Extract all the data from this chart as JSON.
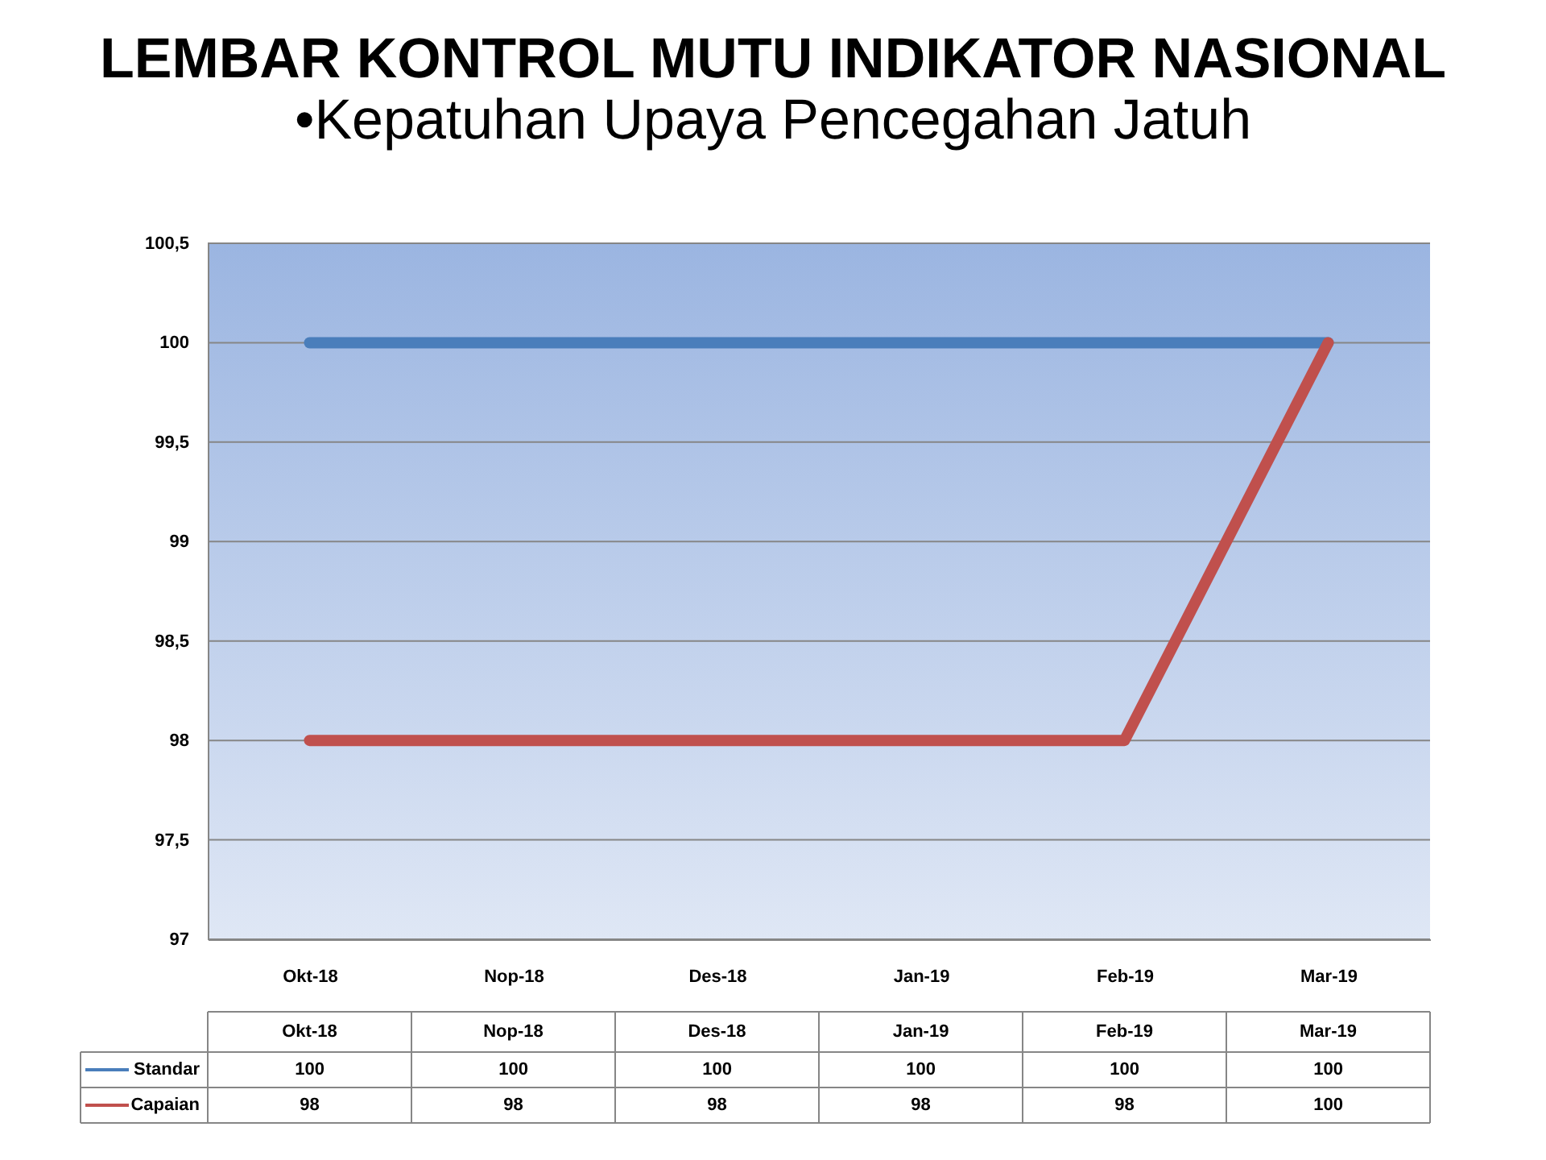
{
  "chart_data": {
    "type": "line",
    "title": "LEMBAR KONTROL MUTU INDIKATOR NASIONAL",
    "subtitle": "•Kepatuhan Upaya Pencegahan Jatuh",
    "categories": [
      "Okt-18",
      "Nop-18",
      "Des-18",
      "Jan-19",
      "Feb-19",
      "Mar-19"
    ],
    "series": [
      {
        "name": "Standar",
        "color": "#4a7ebb",
        "values": [
          100,
          100,
          100,
          100,
          100,
          100
        ]
      },
      {
        "name": "Capaian",
        "color": "#c0504d",
        "values": [
          98,
          98,
          98,
          98,
          98,
          100
        ]
      }
    ],
    "ylim": [
      97,
      100.5
    ],
    "yticks": [
      97,
      {
        "value": 97.5,
        "label": "97,5"
      },
      98,
      {
        "value": 98.5,
        "label": "98,5"
      },
      99,
      {
        "value": 99.5,
        "label": "99,5"
      },
      100,
      {
        "value": 100.5,
        "label": "100,5"
      }
    ],
    "grid": "y",
    "legend": "bottom left",
    "data_labels": true
  }
}
